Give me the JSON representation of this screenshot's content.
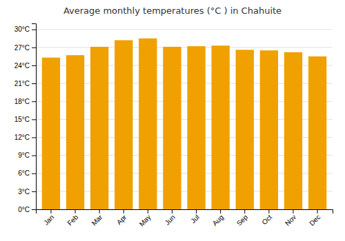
{
  "chart_data": {
    "type": "bar",
    "title": "Average monthly temperatures (°C ) in Chahuite",
    "categories": [
      "Jan",
      "Feb",
      "Mar",
      "Apr",
      "May",
      "Jun",
      "Jul",
      "Aug",
      "Sep",
      "Oct",
      "Nov",
      "Dec"
    ],
    "values": [
      25.3,
      25.7,
      27.1,
      28.2,
      28.5,
      27.1,
      27.2,
      27.3,
      26.6,
      26.5,
      26.2,
      25.5
    ],
    "color": "#F0A000",
    "ylim": [
      0,
      31
    ],
    "yticks": [
      {
        "value": 0,
        "label": "0°C"
      },
      {
        "value": 3,
        "label": "3°C"
      },
      {
        "value": 6,
        "label": "6°C"
      },
      {
        "value": 9,
        "label": "9°C"
      },
      {
        "value": 12,
        "label": "12°C"
      },
      {
        "value": 15,
        "label": "15°C"
      },
      {
        "value": 18,
        "label": "18°C"
      },
      {
        "value": 21,
        "label": "21°C"
      },
      {
        "value": 24,
        "label": "24°C"
      },
      {
        "value": 27,
        "label": "27°C"
      },
      {
        "value": 30,
        "label": "30°C"
      }
    ],
    "grid": true
  }
}
